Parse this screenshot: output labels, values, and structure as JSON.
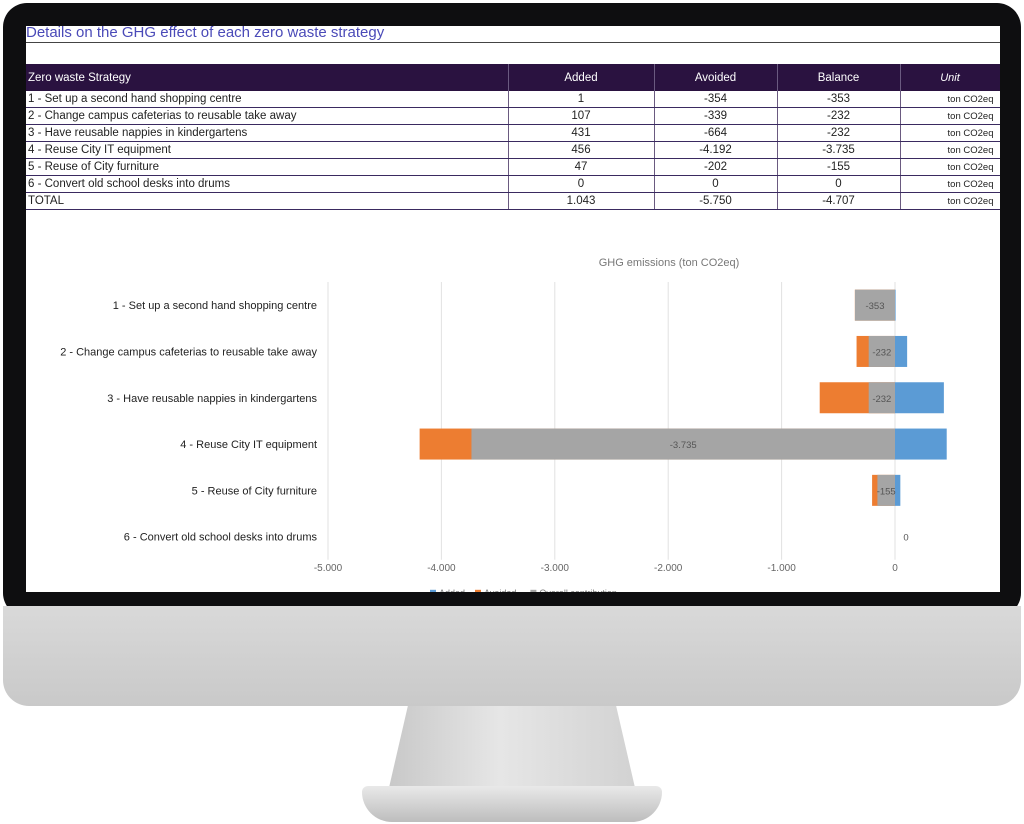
{
  "sheet_title": "Details on the GHG effect of each zero waste strategy",
  "table": {
    "headers": [
      "Zero waste Strategy",
      "Added",
      "Avoided",
      "Balance",
      "Unit"
    ],
    "rows": [
      {
        "strategy": "1 - Set up a second hand shopping centre",
        "added": "1",
        "avoided": "-354",
        "balance": "-353",
        "unit": "ton CO2eq"
      },
      {
        "strategy": "2 - Change campus cafeterias to reusable take away",
        "added": "107",
        "avoided": "-339",
        "balance": "-232",
        "unit": "ton CO2eq"
      },
      {
        "strategy": "3 - Have reusable nappies in kindergartens",
        "added": "431",
        "avoided": "-664",
        "balance": "-232",
        "unit": "ton CO2eq"
      },
      {
        "strategy": "4 - Reuse City IT equipment",
        "added": "456",
        "avoided": "-4.192",
        "balance": "-3.735",
        "unit": "ton CO2eq"
      },
      {
        "strategy": "5 - Reuse of City furniture",
        "added": "47",
        "avoided": "-202",
        "balance": "-155",
        "unit": "ton CO2eq"
      },
      {
        "strategy": "6 - Convert old school desks into drums",
        "added": "0",
        "avoided": "0",
        "balance": "0",
        "unit": "ton CO2eq"
      },
      {
        "strategy": "TOTAL",
        "added": "1.043",
        "avoided": "-5.750",
        "balance": "-4.707",
        "unit": "ton CO2eq"
      }
    ]
  },
  "chart_data": {
    "type": "bar",
    "orientation": "horizontal",
    "title": "GHG emissions (ton CO2eq)",
    "categories": [
      "1 - Set up a second hand shopping centre",
      "2 - Change campus cafeterias to reusable take away",
      "3 - Have reusable nappies in kindergartens",
      "4 - Reuse City IT equipment",
      "5 - Reuse of City furniture",
      "6 - Convert old school desks into drums"
    ],
    "series": [
      {
        "name": "Added",
        "values": [
          1,
          107,
          431,
          456,
          47,
          0
        ],
        "color": "#5b9bd5"
      },
      {
        "name": "Avoided",
        "values": [
          -354,
          -339,
          -664,
          -4192,
          -202,
          0
        ],
        "color": "#ed7d31"
      },
      {
        "name": "Overall contribution",
        "values": [
          -353,
          -232,
          -232,
          -3735,
          -155,
          0
        ],
        "color": "#a5a5a5"
      }
    ],
    "data_labels": [
      "-353",
      "-232",
      "-232",
      "-3.735",
      "-155",
      "0"
    ],
    "xlim": [
      -5000,
      0
    ],
    "x_ticks": [
      -5000,
      -4000,
      -3000,
      -2000,
      -1000,
      0
    ],
    "x_tick_labels": [
      "-5.000",
      "-4.000",
      "-3.000",
      "-2.000",
      "-1.000",
      "0"
    ],
    "grid": true,
    "legend_position": "bottom"
  }
}
